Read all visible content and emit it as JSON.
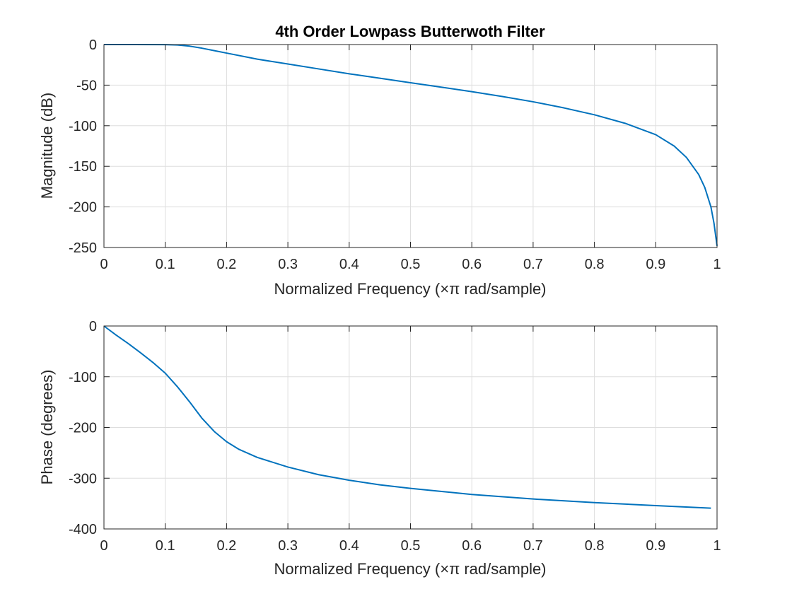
{
  "chart_data": [
    {
      "type": "line",
      "title": "4th Order Lowpass Butterwoth Filter",
      "xlabel": "Normalized Frequency  (×π rad/sample)",
      "ylabel": "Magnitude (dB)",
      "xlim": [
        0,
        1
      ],
      "ylim": [
        -250,
        0
      ],
      "xticks": [
        0,
        0.1,
        0.2,
        0.3,
        0.4,
        0.5,
        0.6,
        0.7,
        0.8,
        0.9,
        1
      ],
      "xtick_labels": [
        "0",
        "0.1",
        "0.2",
        "0.3",
        "0.4",
        "0.5",
        "0.6",
        "0.7",
        "0.8",
        "0.9",
        "1"
      ],
      "yticks": [
        0,
        -50,
        -100,
        -150,
        -200,
        -250
      ],
      "ytick_labels": [
        "0",
        "-50",
        "-100",
        "-150",
        "-200",
        "-250"
      ],
      "grid": true,
      "line_color": "#0072BD",
      "series": [
        {
          "x": [
            0,
            0.05,
            0.1,
            0.12,
            0.14,
            0.16,
            0.18,
            0.2,
            0.25,
            0.3,
            0.35,
            0.4,
            0.45,
            0.5,
            0.55,
            0.6,
            0.65,
            0.7,
            0.75,
            0.8,
            0.85,
            0.9,
            0.93,
            0.95,
            0.97,
            0.98,
            0.99,
            0.995,
            1.0
          ],
          "y": [
            0,
            0,
            -0.1,
            -0.5,
            -2,
            -4.5,
            -7.5,
            -10.5,
            -18,
            -24,
            -30,
            -36,
            -41.5,
            -47,
            -52.5,
            -58,
            -64,
            -70.5,
            -78,
            -86.5,
            -97,
            -111,
            -125,
            -139,
            -160,
            -176,
            -200,
            -220,
            -248
          ]
        }
      ]
    },
    {
      "type": "line",
      "title": "",
      "xlabel": "Normalized Frequency  (×π rad/sample)",
      "ylabel": "Phase (degrees)",
      "xlim": [
        0,
        1
      ],
      "ylim": [
        -400,
        0
      ],
      "xticks": [
        0,
        0.1,
        0.2,
        0.3,
        0.4,
        0.5,
        0.6,
        0.7,
        0.8,
        0.9,
        1
      ],
      "xtick_labels": [
        "0",
        "0.1",
        "0.2",
        "0.3",
        "0.4",
        "0.5",
        "0.6",
        "0.7",
        "0.8",
        "0.9",
        "1"
      ],
      "yticks": [
        0,
        -100,
        -200,
        -300,
        -400
      ],
      "ytick_labels": [
        "0",
        "-100",
        "-200",
        "-300",
        "-400"
      ],
      "grid": true,
      "line_color": "#0072BD",
      "series": [
        {
          "x": [
            0,
            0.02,
            0.04,
            0.06,
            0.08,
            0.1,
            0.12,
            0.14,
            0.16,
            0.18,
            0.2,
            0.22,
            0.25,
            0.3,
            0.35,
            0.4,
            0.45,
            0.5,
            0.6,
            0.7,
            0.8,
            0.9,
            0.99
          ],
          "y": [
            0,
            -18,
            -35,
            -53,
            -72,
            -93,
            -120,
            -150,
            -182,
            -208,
            -228,
            -243,
            -259,
            -278,
            -293,
            -304,
            -313,
            -320,
            -332,
            -341,
            -348,
            -354,
            -359
          ]
        }
      ]
    }
  ]
}
